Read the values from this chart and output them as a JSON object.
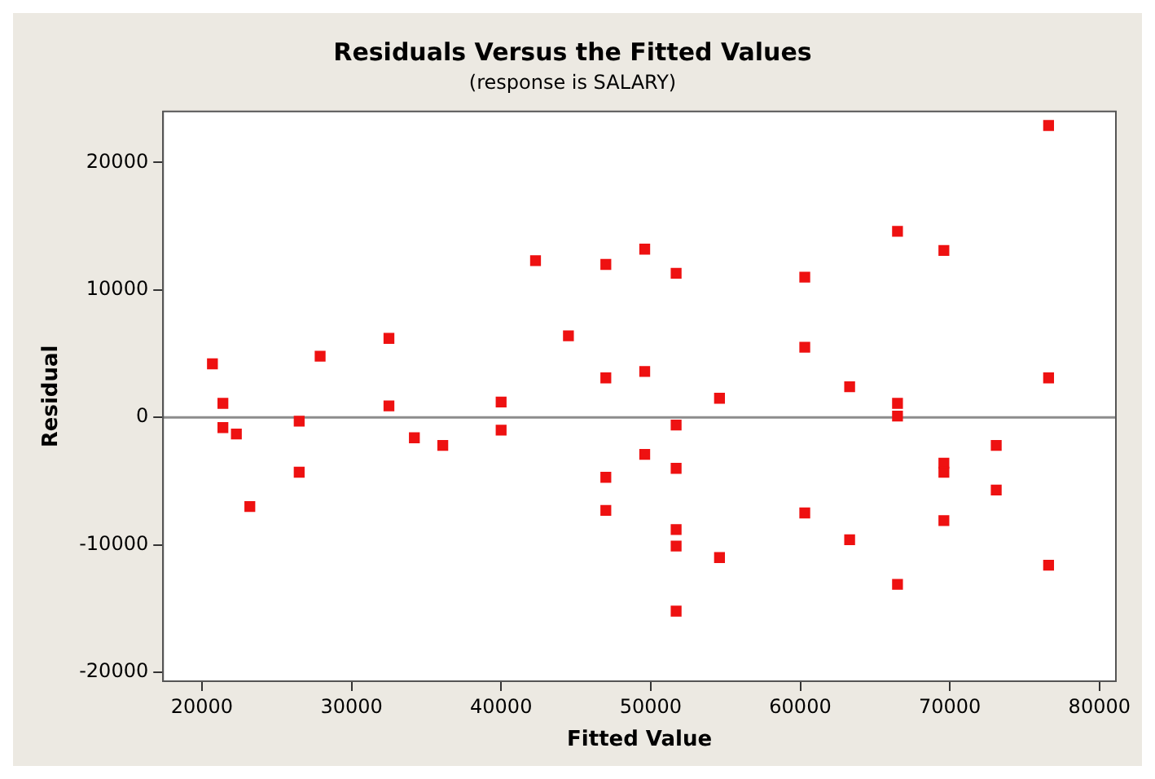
{
  "chart_data": {
    "type": "scatter",
    "title": "Residuals Versus the Fitted Values",
    "subtitle": "(response is SALARY)",
    "xlabel": "Fitted Value",
    "ylabel": "Residual",
    "series": [
      {
        "color": "#ee1111",
        "x": [
          20700,
          21400,
          21400,
          22300,
          23200,
          26500,
          26500,
          27900,
          32500,
          32500,
          34200,
          36100,
          40000,
          40000,
          42300,
          44500,
          47000,
          47000,
          47000,
          47000,
          49600,
          49600,
          49600,
          76600,
          66500,
          69600,
          51700,
          60300,
          60300,
          63300,
          76600,
          54600,
          66500,
          66500,
          51700,
          73100,
          51700,
          69600,
          69600,
          73100,
          60300,
          69600,
          51700,
          51700,
          63300,
          54600,
          76600,
          66500,
          51700
        ],
        "values": [
          4200,
          1100,
          -800,
          -1300,
          -7000,
          -300,
          -4300,
          4800,
          6200,
          900,
          -1600,
          -2200,
          1200,
          -1000,
          12300,
          6400,
          12000,
          3100,
          -4700,
          -7300,
          13200,
          3600,
          -2900,
          22900,
          14600,
          13100,
          11300,
          11000,
          5500,
          2400,
          3100,
          1500,
          1100,
          100,
          -600,
          -2200,
          -4000,
          -3600,
          -4300,
          -5700,
          -7500,
          -8100,
          -8800,
          -10100,
          -9600,
          -11000,
          -11600,
          -13100,
          -15200
        ]
      }
    ],
    "xlim": [
      17400,
      81100
    ],
    "xticks": [
      20000,
      30000,
      40000,
      50000,
      60000,
      70000,
      80000
    ],
    "ylim": [
      -20700,
      24000
    ],
    "yticks": [
      -20000,
      -10000,
      0,
      10000,
      20000
    ],
    "ref_lines": [
      {
        "axis": "y",
        "value": 0,
        "color": "#8c8c8c"
      }
    ],
    "grid": false,
    "legend": false,
    "marker": "square"
  }
}
